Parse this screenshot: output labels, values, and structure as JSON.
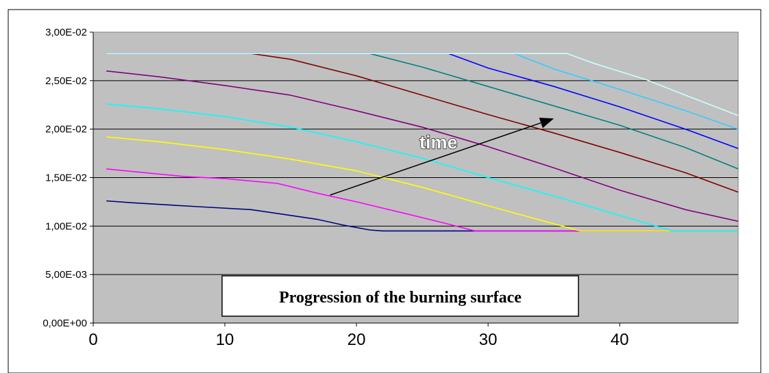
{
  "chart_data": {
    "type": "line",
    "title": "Progression of the burning surface",
    "annotation": "time",
    "xlabel": "",
    "ylabel": "",
    "xlim": [
      0,
      49
    ],
    "ylim": [
      0,
      0.03
    ],
    "x_ticks": [
      0,
      10,
      20,
      30,
      40
    ],
    "x_tick_labels": [
      "0",
      "10",
      "20",
      "30",
      "40"
    ],
    "y_ticks": [
      0,
      0.005,
      0.01,
      0.015,
      0.02,
      0.025,
      0.03
    ],
    "y_tick_labels": [
      "0,00E+00",
      "5,00E-03",
      "1,00E-02",
      "1,50E-02",
      "2,00E-02",
      "2,50E-02",
      "3,00E-02"
    ],
    "grid": "horizontal",
    "plot_background": "#c0c0c0",
    "legend": "none",
    "arrow": {
      "from": [
        18,
        0.0132
      ],
      "to": [
        35,
        0.0211
      ]
    },
    "series": [
      {
        "color": "#000080",
        "points": [
          [
            1,
            0.0126
          ],
          [
            3,
            0.0124
          ],
          [
            8,
            0.012
          ],
          [
            12,
            0.0117
          ],
          [
            17,
            0.0107
          ],
          [
            19,
            0.0101
          ],
          [
            21,
            0.0096
          ],
          [
            22,
            0.0095
          ],
          [
            49,
            0.0095
          ]
        ]
      },
      {
        "color": "#ff00ff",
        "points": [
          [
            1,
            0.0159
          ],
          [
            7,
            0.0151
          ],
          [
            10,
            0.0149
          ],
          [
            14,
            0.0144
          ],
          [
            17,
            0.0134
          ],
          [
            20,
            0.0125
          ],
          [
            24,
            0.0112
          ],
          [
            27,
            0.0102
          ],
          [
            29,
            0.0095
          ],
          [
            49,
            0.0095
          ]
        ]
      },
      {
        "color": "#ffff00",
        "points": [
          [
            1,
            0.0192
          ],
          [
            5,
            0.0187
          ],
          [
            10,
            0.0179
          ],
          [
            15,
            0.0169
          ],
          [
            20,
            0.0157
          ],
          [
            25,
            0.014
          ],
          [
            30,
            0.0121
          ],
          [
            34,
            0.0106
          ],
          [
            37,
            0.0095
          ],
          [
            49,
            0.0095
          ]
        ]
      },
      {
        "color": "#00ffff",
        "points": [
          [
            1,
            0.0226
          ],
          [
            5,
            0.0221
          ],
          [
            10,
            0.0213
          ],
          [
            15,
            0.0202
          ],
          [
            20,
            0.0187
          ],
          [
            25,
            0.017
          ],
          [
            30,
            0.015
          ],
          [
            35,
            0.0131
          ],
          [
            40,
            0.0111
          ],
          [
            44,
            0.0095
          ],
          [
            49,
            0.0095
          ]
        ]
      },
      {
        "color": "#800080",
        "points": [
          [
            1,
            0.026
          ],
          [
            5,
            0.0254
          ],
          [
            10,
            0.0245
          ],
          [
            15,
            0.0235
          ],
          [
            20,
            0.0219
          ],
          [
            25,
            0.0202
          ],
          [
            30,
            0.0182
          ],
          [
            35,
            0.016
          ],
          [
            40,
            0.0137
          ],
          [
            45,
            0.0117
          ],
          [
            49,
            0.0105
          ]
        ]
      },
      {
        "color": "#800000",
        "points": [
          [
            1,
            0.0278
          ],
          [
            12,
            0.0278
          ],
          [
            15,
            0.0272
          ],
          [
            20,
            0.0255
          ],
          [
            25,
            0.0235
          ],
          [
            30,
            0.0215
          ],
          [
            35,
            0.0196
          ],
          [
            40,
            0.0176
          ],
          [
            45,
            0.0155
          ],
          [
            49,
            0.0135
          ]
        ]
      },
      {
        "color": "#008080",
        "points": [
          [
            1,
            0.0278
          ],
          [
            21,
            0.0278
          ],
          [
            25,
            0.0264
          ],
          [
            30,
            0.0244
          ],
          [
            35,
            0.0224
          ],
          [
            40,
            0.0204
          ],
          [
            45,
            0.0181
          ],
          [
            49,
            0.0159
          ]
        ]
      },
      {
        "color": "#0000ff",
        "points": [
          [
            1,
            0.0278
          ],
          [
            27,
            0.0278
          ],
          [
            30,
            0.0263
          ],
          [
            35,
            0.0244
          ],
          [
            40,
            0.0223
          ],
          [
            45,
            0.02
          ],
          [
            49,
            0.018
          ]
        ]
      },
      {
        "color": "#33ccff",
        "points": [
          [
            1,
            0.0278
          ],
          [
            32,
            0.0278
          ],
          [
            35,
            0.0262
          ],
          [
            40,
            0.0241
          ],
          [
            45,
            0.0219
          ],
          [
            49,
            0.02
          ]
        ]
      },
      {
        "color": "#ccffff",
        "points": [
          [
            1,
            0.0278
          ],
          [
            36,
            0.0278
          ],
          [
            38,
            0.0268
          ],
          [
            42,
            0.0251
          ],
          [
            45,
            0.0235
          ],
          [
            49,
            0.0214
          ]
        ]
      }
    ]
  }
}
